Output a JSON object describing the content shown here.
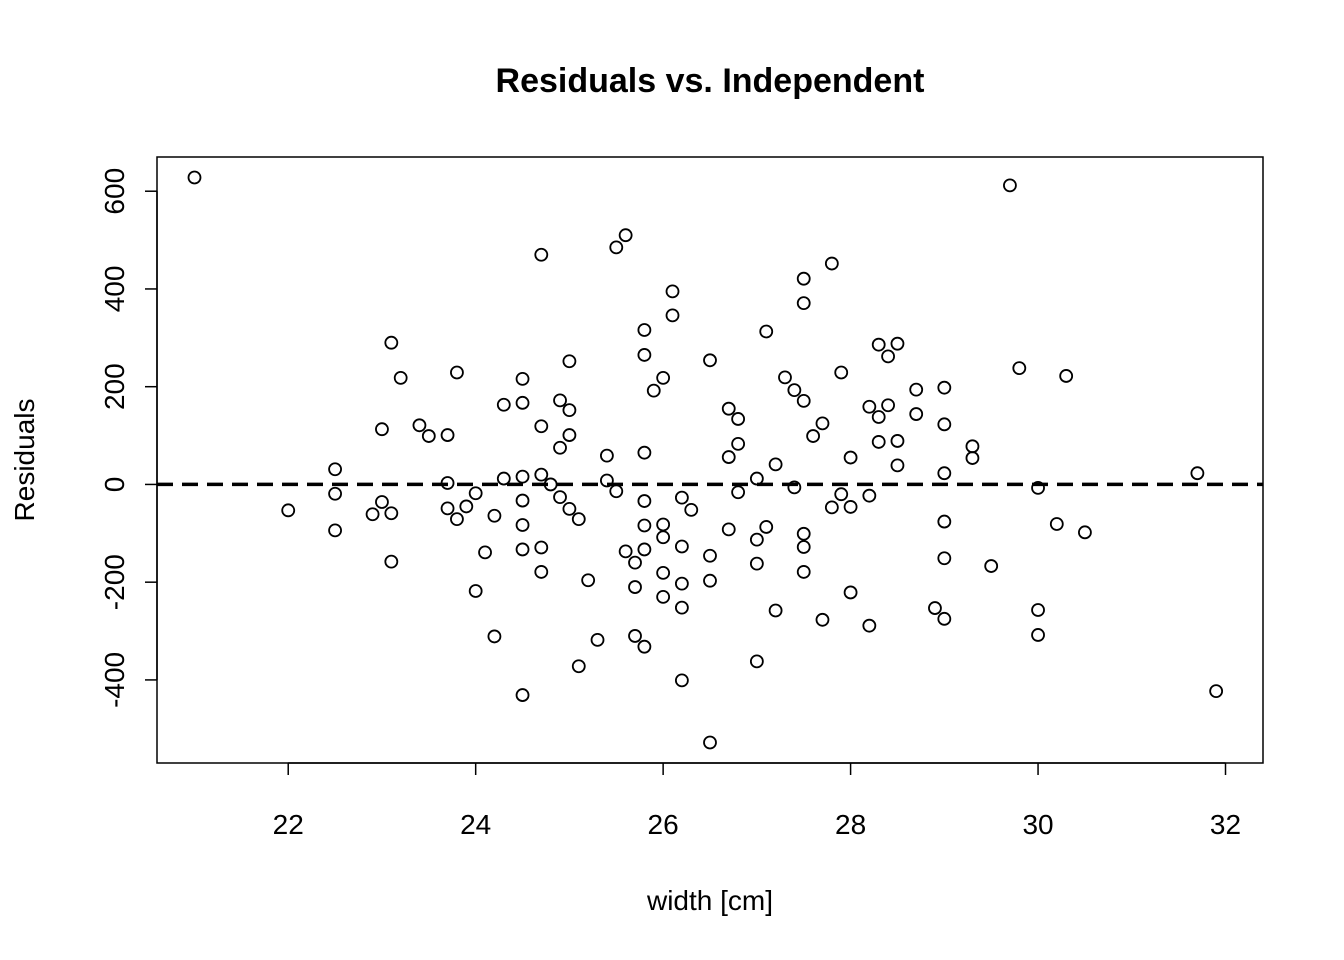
{
  "chart_data": {
    "type": "scatter",
    "title": "Residuals vs. Independent",
    "xlabel": "width [cm]",
    "ylabel": "Residuals",
    "xlim": [
      20.6,
      32.4
    ],
    "ylim": [
      -570,
      670
    ],
    "xticks": [
      22,
      24,
      26,
      28,
      30,
      32
    ],
    "yticks": [
      -400,
      -200,
      0,
      200,
      400,
      600
    ],
    "grid": false,
    "reference_line": {
      "y": 0,
      "style": "dashed"
    },
    "points": [
      [
        21.0,
        628
      ],
      [
        22.0,
        -53
      ],
      [
        22.5,
        31
      ],
      [
        22.5,
        -19
      ],
      [
        22.5,
        -94
      ],
      [
        22.9,
        -61
      ],
      [
        23.0,
        113
      ],
      [
        23.0,
        -36
      ],
      [
        23.1,
        290
      ],
      [
        23.1,
        -59
      ],
      [
        23.1,
        -158
      ],
      [
        23.2,
        218
      ],
      [
        23.4,
        121
      ],
      [
        23.5,
        99
      ],
      [
        23.7,
        101
      ],
      [
        23.7,
        3
      ],
      [
        23.7,
        -49
      ],
      [
        23.8,
        229
      ],
      [
        23.8,
        -71
      ],
      [
        23.9,
        -45
      ],
      [
        24.0,
        -18
      ],
      [
        24.0,
        -218
      ],
      [
        24.1,
        -139
      ],
      [
        24.2,
        -64
      ],
      [
        24.2,
        -311
      ],
      [
        24.3,
        163
      ],
      [
        24.3,
        12
      ],
      [
        24.5,
        216
      ],
      [
        24.5,
        167
      ],
      [
        24.5,
        16
      ],
      [
        24.5,
        -33
      ],
      [
        24.5,
        -83
      ],
      [
        24.5,
        -133
      ],
      [
        24.5,
        -431
      ],
      [
        24.7,
        470
      ],
      [
        24.7,
        119
      ],
      [
        24.7,
        20
      ],
      [
        24.7,
        -129
      ],
      [
        24.7,
        -179
      ],
      [
        24.8,
        0
      ],
      [
        24.9,
        172
      ],
      [
        24.9,
        75
      ],
      [
        24.9,
        -26
      ],
      [
        25.0,
        252
      ],
      [
        25.0,
        152
      ],
      [
        25.0,
        101
      ],
      [
        25.0,
        -50
      ],
      [
        25.1,
        -71
      ],
      [
        25.1,
        -372
      ],
      [
        25.2,
        -196
      ],
      [
        25.3,
        -318
      ],
      [
        25.4,
        59
      ],
      [
        25.4,
        8
      ],
      [
        25.5,
        485
      ],
      [
        25.5,
        -14
      ],
      [
        25.6,
        510
      ],
      [
        25.6,
        -137
      ],
      [
        25.7,
        -160
      ],
      [
        25.7,
        -210
      ],
      [
        25.7,
        -310
      ],
      [
        25.8,
        316
      ],
      [
        25.8,
        265
      ],
      [
        25.8,
        65
      ],
      [
        25.8,
        -34
      ],
      [
        25.8,
        -84
      ],
      [
        25.8,
        -133
      ],
      [
        25.8,
        -332
      ],
      [
        25.9,
        192
      ],
      [
        26.0,
        218
      ],
      [
        26.0,
        -82
      ],
      [
        26.0,
        -108
      ],
      [
        26.0,
        -181
      ],
      [
        26.0,
        -230
      ],
      [
        26.1,
        395
      ],
      [
        26.1,
        346
      ],
      [
        26.2,
        -27
      ],
      [
        26.2,
        -127
      ],
      [
        26.2,
        -203
      ],
      [
        26.2,
        -252
      ],
      [
        26.2,
        -401
      ],
      [
        26.3,
        -52
      ],
      [
        26.5,
        254
      ],
      [
        26.5,
        -146
      ],
      [
        26.5,
        -197
      ],
      [
        26.5,
        -528
      ],
      [
        26.7,
        155
      ],
      [
        26.7,
        56
      ],
      [
        26.7,
        -92
      ],
      [
        26.8,
        134
      ],
      [
        26.8,
        83
      ],
      [
        26.8,
        -16
      ],
      [
        27.0,
        12
      ],
      [
        27.0,
        -113
      ],
      [
        27.0,
        -162
      ],
      [
        27.0,
        -362
      ],
      [
        27.1,
        313
      ],
      [
        27.1,
        -87
      ],
      [
        27.2,
        41
      ],
      [
        27.2,
        -258
      ],
      [
        27.3,
        219
      ],
      [
        27.4,
        193
      ],
      [
        27.4,
        -6
      ],
      [
        27.5,
        421
      ],
      [
        27.5,
        371
      ],
      [
        27.5,
        171
      ],
      [
        27.5,
        -101
      ],
      [
        27.5,
        -128
      ],
      [
        27.5,
        -179
      ],
      [
        27.6,
        99
      ],
      [
        27.7,
        125
      ],
      [
        27.7,
        -277
      ],
      [
        27.8,
        452
      ],
      [
        27.8,
        -47
      ],
      [
        27.9,
        229
      ],
      [
        27.9,
        -20
      ],
      [
        28.0,
        55
      ],
      [
        28.0,
        -46
      ],
      [
        28.0,
        -221
      ],
      [
        28.2,
        159
      ],
      [
        28.2,
        -23
      ],
      [
        28.2,
        -289
      ],
      [
        28.3,
        286
      ],
      [
        28.3,
        138
      ],
      [
        28.3,
        87
      ],
      [
        28.4,
        262
      ],
      [
        28.4,
        162
      ],
      [
        28.5,
        288
      ],
      [
        28.5,
        89
      ],
      [
        28.5,
        39
      ],
      [
        28.7,
        194
      ],
      [
        28.7,
        144
      ],
      [
        28.9,
        -253
      ],
      [
        29.0,
        198
      ],
      [
        29.0,
        123
      ],
      [
        29.0,
        23
      ],
      [
        29.0,
        -76
      ],
      [
        29.0,
        -151
      ],
      [
        29.0,
        -275
      ],
      [
        29.3,
        78
      ],
      [
        29.3,
        54
      ],
      [
        29.5,
        -167
      ],
      [
        29.7,
        612
      ],
      [
        29.8,
        238
      ],
      [
        30.0,
        -7
      ],
      [
        30.0,
        -257
      ],
      [
        30.0,
        -308
      ],
      [
        30.2,
        -81
      ],
      [
        30.3,
        222
      ],
      [
        30.5,
        -98
      ],
      [
        31.7,
        23
      ],
      [
        31.9,
        -423
      ]
    ]
  }
}
